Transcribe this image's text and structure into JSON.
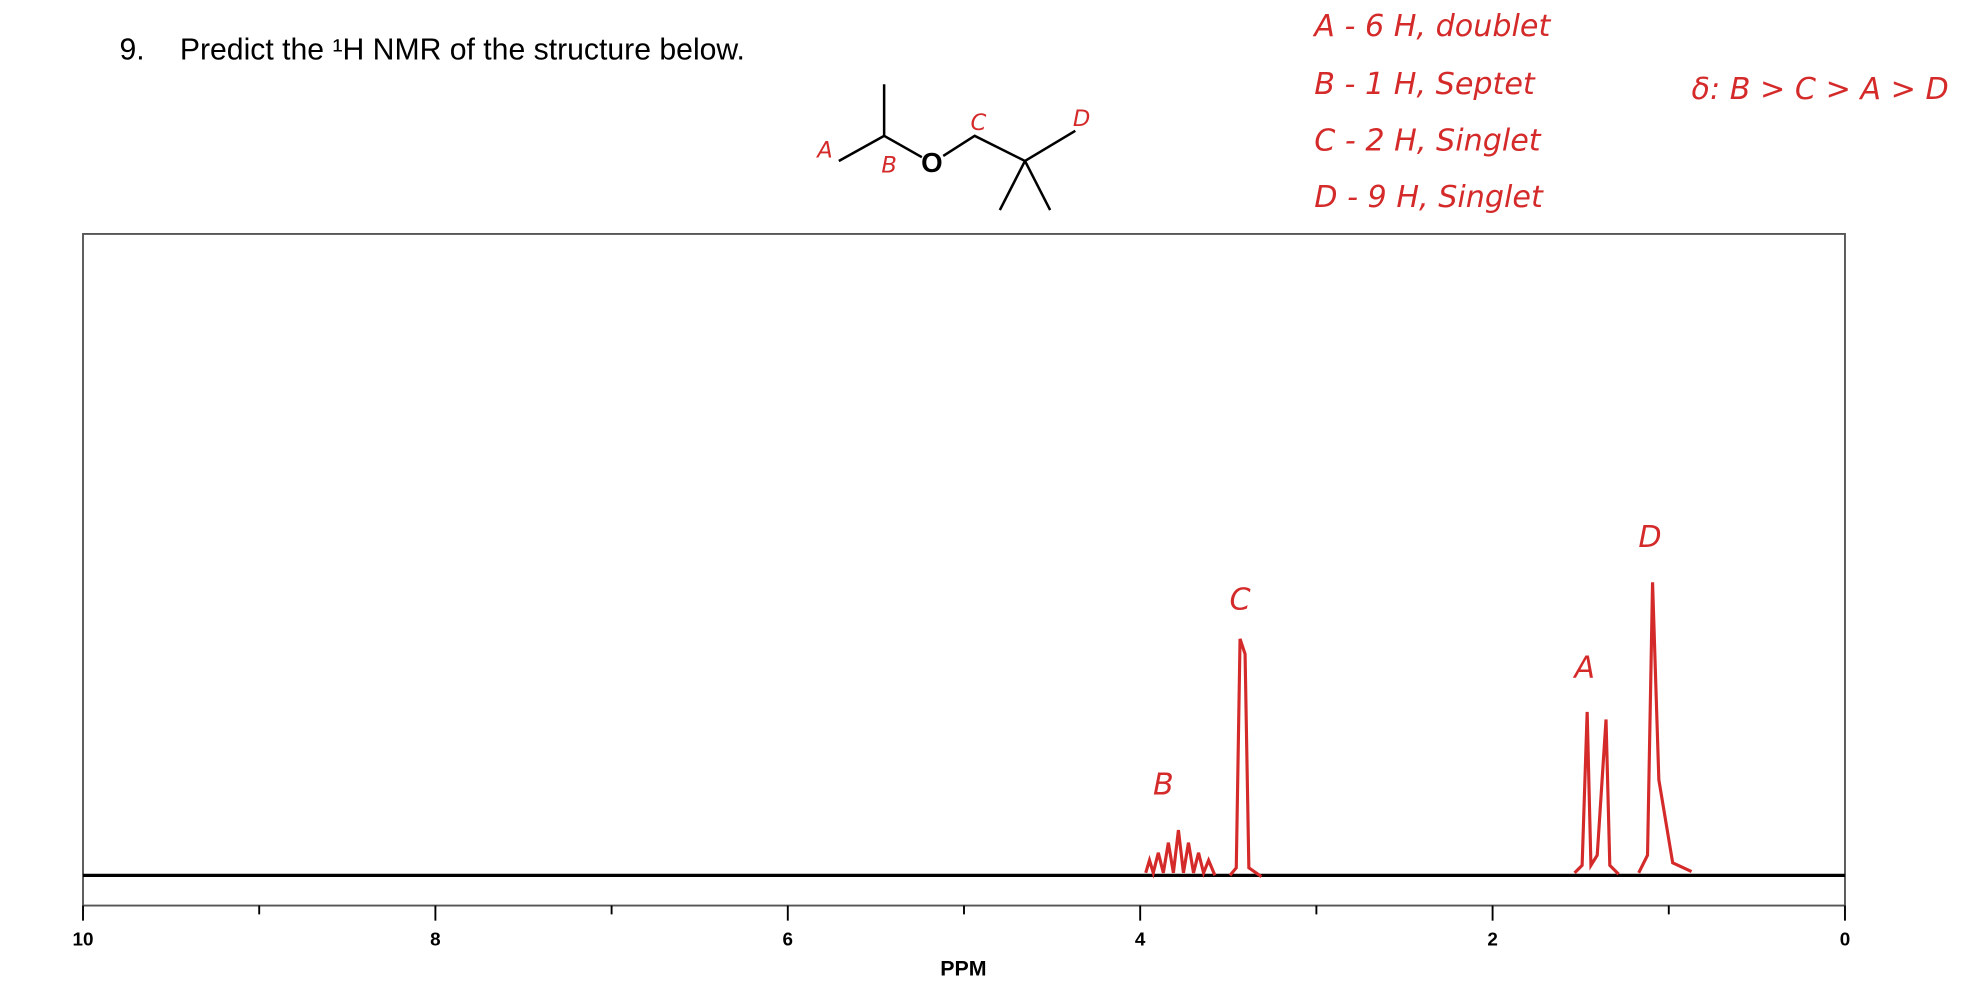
{
  "question": {
    "number": "9.",
    "text": "Predict the ¹H NMR of the structure below."
  },
  "structure": {
    "atom": "O",
    "labels": [
      "A",
      "B",
      "C",
      "D"
    ]
  },
  "annotations": {
    "assignments": [
      "A - 6 H, doublet",
      "B - 1 H, Septet",
      "C - 2 H, Singlet",
      "D - 9 H, Singlet"
    ],
    "order": "δ: B > C > A > D"
  },
  "spectrum": {
    "xlabel": "PPM",
    "xlim": [
      10,
      0
    ],
    "xticks": [
      10,
      8,
      6,
      4,
      2,
      0
    ],
    "peak_labels": [
      "B",
      "C",
      "A",
      "D"
    ]
  }
}
